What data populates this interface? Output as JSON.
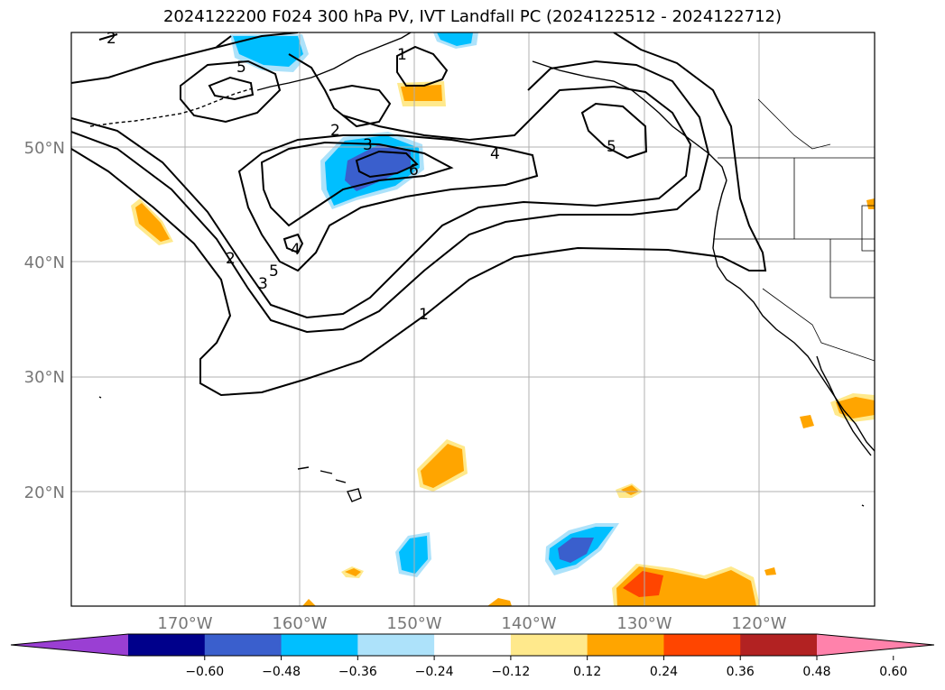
{
  "title": "2024122200 F024 300 hPa PV, IVT Landfall PC (2024122512 - 2024122712)",
  "map": {
    "lon_range": [
      -180,
      -110
    ],
    "lat_range": [
      10,
      60
    ],
    "lat_ticks": [
      {
        "value": 50,
        "label": "50°N"
      },
      {
        "value": 40,
        "label": "40°N"
      },
      {
        "value": 30,
        "label": "30°N"
      },
      {
        "value": 20,
        "label": "20°N"
      }
    ],
    "lon_ticks": [
      {
        "value": -170,
        "label": "170°W"
      },
      {
        "value": -160,
        "label": "160°W"
      },
      {
        "value": -150,
        "label": "150°W"
      },
      {
        "value": -140,
        "label": "140°W"
      },
      {
        "value": -130,
        "label": "130°W"
      },
      {
        "value": -120,
        "label": "120°W"
      }
    ],
    "gridlines": true,
    "contour_variable": "300 hPa PV",
    "contour_labels": [
      "2",
      "5",
      "1",
      "2",
      "3",
      "4",
      "6",
      "5",
      "4",
      "1",
      "2",
      "3",
      "5"
    ],
    "shading_variable": "IVT Landfall PC"
  },
  "colorbar": {
    "levels": [
      "−0.60",
      "−0.48",
      "−0.36",
      "−0.24",
      "−0.12",
      "0.12",
      "0.24",
      "0.36",
      "0.48",
      "0.60"
    ],
    "colors": [
      "#9a3fd3",
      "#00008b",
      "#3a5fcd",
      "#00bfff",
      "#ade2fa",
      "#ffffff",
      "#ffe98c",
      "#ffa500",
      "#ff4500",
      "#b22222",
      "#ff82ab"
    ],
    "extend": "both"
  }
}
